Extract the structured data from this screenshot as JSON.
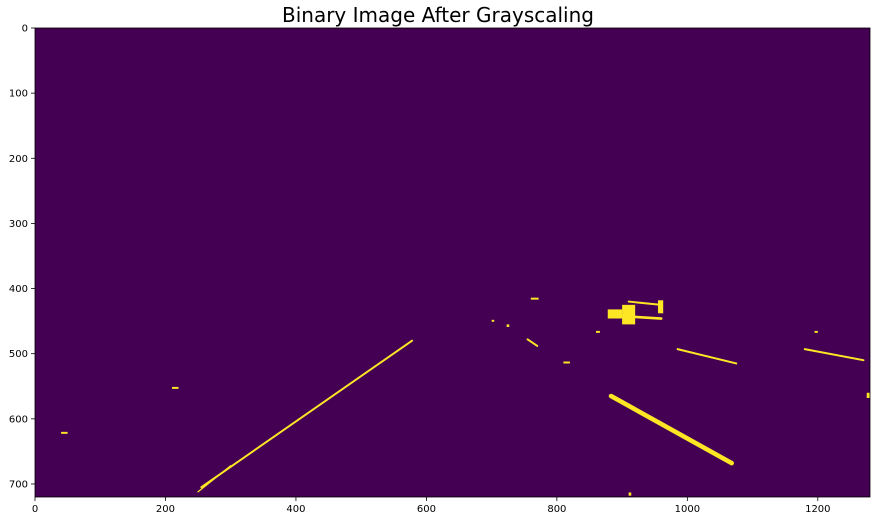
{
  "chart_data": {
    "type": "heatmap",
    "title": "Binary Image After Grayscaling",
    "xlabel": "",
    "ylabel": "",
    "xlim": [
      0,
      1280
    ],
    "ylim": [
      720,
      0
    ],
    "x_ticks": [
      0,
      200,
      400,
      600,
      800,
      1000,
      1200
    ],
    "y_ticks": [
      0,
      100,
      200,
      300,
      400,
      500,
      600,
      700
    ],
    "grid": false,
    "colormap": {
      "low": "#440154",
      "high": "#fde725"
    },
    "background_value": 0,
    "foreground_segments": [
      {
        "name": "left-lane-line",
        "from": [
          255,
          705
        ],
        "to": [
          578,
          480
        ],
        "width": 3
      },
      {
        "name": "left-lane-line-lower",
        "from": [
          250,
          712
        ],
        "to": [
          300,
          672
        ],
        "width": 2
      },
      {
        "name": "right-lane-dash-near",
        "from": [
          883,
          565
        ],
        "to": [
          1068,
          668
        ],
        "width": 7
      },
      {
        "name": "right-lane-dash-far",
        "from": [
          985,
          493
        ],
        "to": [
          1075,
          515
        ],
        "width": 3
      },
      {
        "name": "right-edge-dash",
        "from": [
          1180,
          493
        ],
        "to": [
          1270,
          510
        ],
        "width": 3
      },
      {
        "name": "center-dash",
        "from": [
          755,
          478
        ],
        "to": [
          770,
          488
        ],
        "width": 3
      },
      {
        "name": "vehicle-roof",
        "from": [
          910,
          420
        ],
        "to": [
          960,
          425
        ],
        "width": 3
      },
      {
        "name": "vehicle-bumper",
        "from": [
          895,
          442
        ],
        "to": [
          960,
          446
        ],
        "width": 4
      }
    ],
    "foreground_blobs": [
      {
        "name": "vehicle-left",
        "x": 878,
        "y": 432,
        "w": 22,
        "h": 14
      },
      {
        "name": "vehicle-body",
        "x": 900,
        "y": 425,
        "w": 20,
        "h": 30
      },
      {
        "name": "vehicle-right",
        "x": 955,
        "y": 418,
        "w": 8,
        "h": 20
      },
      {
        "name": "speck-far-left",
        "x": 40,
        "y": 620,
        "w": 10,
        "h": 3
      },
      {
        "name": "speck-left",
        "x": 210,
        "y": 551,
        "w": 10,
        "h": 3
      },
      {
        "name": "speck-top",
        "x": 760,
        "y": 414,
        "w": 12,
        "h": 3
      },
      {
        "name": "speck-center",
        "x": 810,
        "y": 512,
        "w": 10,
        "h": 3
      },
      {
        "name": "speck-small-1",
        "x": 723,
        "y": 455,
        "w": 4,
        "h": 4
      },
      {
        "name": "speck-small-2",
        "x": 700,
        "y": 448,
        "w": 4,
        "h": 3
      },
      {
        "name": "speck-small-3",
        "x": 860,
        "y": 465,
        "w": 6,
        "h": 3
      },
      {
        "name": "speck-bottom",
        "x": 910,
        "y": 713,
        "w": 4,
        "h": 5
      },
      {
        "name": "speck-right",
        "x": 1195,
        "y": 465,
        "w": 5,
        "h": 3
      },
      {
        "name": "speck-edge",
        "x": 1275,
        "y": 560,
        "w": 5,
        "h": 8
      }
    ]
  }
}
